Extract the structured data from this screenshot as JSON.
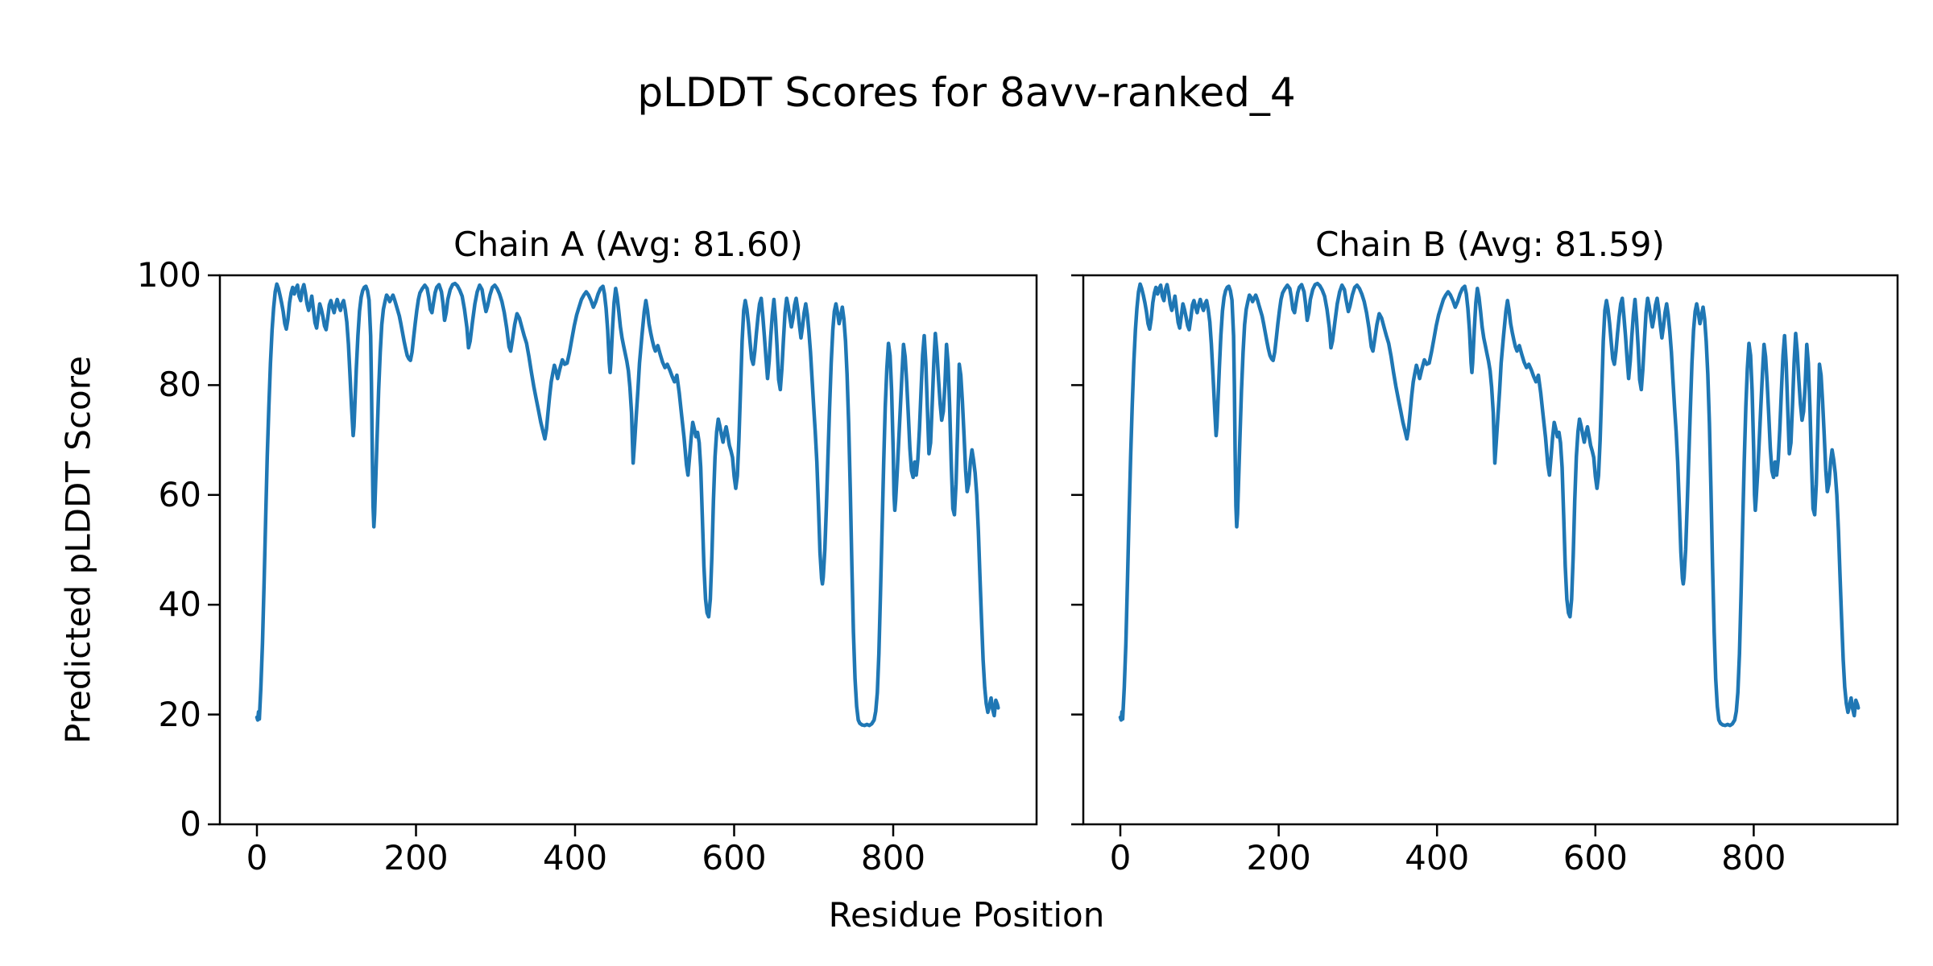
{
  "chart_data": {
    "type": "line",
    "title": "pLDDT Scores for 8avv-ranked_4",
    "xlabel": "Residue Position",
    "ylabel": "Predicted pLDDT Score",
    "ylim": [
      0,
      100
    ],
    "xlim": [
      -47,
      981
    ],
    "y_ticks": [
      0,
      20,
      40,
      60,
      80,
      100
    ],
    "x_ticks": [
      0,
      200,
      400,
      600,
      800
    ],
    "grid": false,
    "legend": "none",
    "line_color": "#1f77b4",
    "panels": [
      {
        "title": "Chain A (Avg: 81.60)",
        "chain": "A",
        "avg_plddt": "81.60"
      },
      {
        "title": "Chain B (Avg: 81.59)",
        "chain": "B",
        "avg_plddt": "81.59"
      }
    ],
    "series_note": "Chain A and Chain B traces are visually identical; both use the shared points array below (residue, pLDDT).",
    "points": [
      [
        0,
        19.5
      ],
      [
        1,
        19.0
      ],
      [
        2,
        20.5
      ],
      [
        3,
        19.2
      ],
      [
        5,
        25
      ],
      [
        7,
        33
      ],
      [
        9,
        44
      ],
      [
        11,
        56
      ],
      [
        13,
        67
      ],
      [
        15,
        76
      ],
      [
        17,
        84
      ],
      [
        19,
        90
      ],
      [
        21,
        94
      ],
      [
        23,
        97
      ],
      [
        25,
        98.4
      ],
      [
        27,
        97.6
      ],
      [
        29,
        96.4
      ],
      [
        31,
        95
      ],
      [
        33,
        93.4
      ],
      [
        35,
        91.2
      ],
      [
        37,
        90.2
      ],
      [
        39,
        92
      ],
      [
        41,
        95
      ],
      [
        43,
        96.8
      ],
      [
        45,
        97.8
      ],
      [
        47,
        96.6
      ],
      [
        49,
        97.6
      ],
      [
        51,
        98.2
      ],
      [
        53,
        96.2
      ],
      [
        55,
        95.4
      ],
      [
        57,
        97.4
      ],
      [
        59,
        98.3
      ],
      [
        61,
        96.8
      ],
      [
        63,
        94.8
      ],
      [
        65,
        93.6
      ],
      [
        67,
        94.8
      ],
      [
        69,
        96.2
      ],
      [
        71,
        93.8
      ],
      [
        73,
        91.4
      ],
      [
        75,
        90.4
      ],
      [
        77,
        92.6
      ],
      [
        79,
        94.8
      ],
      [
        81,
        93.8
      ],
      [
        83,
        92.4
      ],
      [
        85,
        90.8
      ],
      [
        87,
        90.1
      ],
      [
        89,
        92.2
      ],
      [
        91,
        94.6
      ],
      [
        93,
        95.4
      ],
      [
        95,
        94.2
      ],
      [
        97,
        93.2
      ],
      [
        99,
        94.6
      ],
      [
        101,
        95.6
      ],
      [
        103,
        94.4
      ],
      [
        105,
        93.6
      ],
      [
        107,
        94.8
      ],
      [
        109,
        95.4
      ],
      [
        111,
        93.8
      ],
      [
        113,
        91.5
      ],
      [
        115,
        87.5
      ],
      [
        117,
        82
      ],
      [
        119,
        76
      ],
      [
        121,
        70.8
      ],
      [
        122,
        72.5
      ],
      [
        123,
        76
      ],
      [
        125,
        83
      ],
      [
        127,
        89
      ],
      [
        129,
        93.5
      ],
      [
        131,
        96
      ],
      [
        133,
        97.2
      ],
      [
        135,
        97.8
      ],
      [
        137,
        98
      ],
      [
        139,
        97.2
      ],
      [
        141,
        95.5
      ],
      [
        143,
        89
      ],
      [
        144,
        80
      ],
      [
        145,
        68
      ],
      [
        146,
        58
      ],
      [
        147,
        54.2
      ],
      [
        148,
        56.5
      ],
      [
        149,
        61
      ],
      [
        151,
        70
      ],
      [
        153,
        79
      ],
      [
        155,
        86
      ],
      [
        157,
        91
      ],
      [
        159,
        93.8
      ],
      [
        161,
        95.2
      ],
      [
        163,
        96.4
      ],
      [
        165,
        96
      ],
      [
        167,
        95.2
      ],
      [
        169,
        95.8
      ],
      [
        171,
        96.4
      ],
      [
        173,
        95.6
      ],
      [
        175,
        94.6
      ],
      [
        177,
        93.6
      ],
      [
        179,
        92.6
      ],
      [
        181,
        91.2
      ],
      [
        183,
        89.6
      ],
      [
        185,
        88
      ],
      [
        187,
        86.6
      ],
      [
        189,
        85.4
      ],
      [
        191,
        84.8
      ],
      [
        193,
        84.5
      ],
      [
        195,
        86
      ],
      [
        197,
        88.6
      ],
      [
        199,
        91.2
      ],
      [
        201,
        93.6
      ],
      [
        203,
        95.6
      ],
      [
        205,
        96.8
      ],
      [
        208,
        97.6
      ],
      [
        211,
        98.2
      ],
      [
        214,
        97.6
      ],
      [
        216,
        96
      ],
      [
        218,
        93.8
      ],
      [
        220,
        93.2
      ],
      [
        222,
        95
      ],
      [
        224,
        96.8
      ],
      [
        226,
        97.8
      ],
      [
        229,
        98.3
      ],
      [
        232,
        97
      ],
      [
        234,
        94.8
      ],
      [
        236,
        91.8
      ],
      [
        238,
        93.2
      ],
      [
        240,
        95.6
      ],
      [
        243,
        97.4
      ],
      [
        246,
        98.3
      ],
      [
        249,
        98.5
      ],
      [
        252,
        98.1
      ],
      [
        255,
        97.3
      ],
      [
        258,
        96.2
      ],
      [
        261,
        93.8
      ],
      [
        264,
        90.5
      ],
      [
        266,
        86.8
      ],
      [
        268,
        88
      ],
      [
        271,
        91.5
      ],
      [
        274,
        94.8
      ],
      [
        277,
        97
      ],
      [
        280,
        98.2
      ],
      [
        283,
        97.4
      ],
      [
        285,
        95.6
      ],
      [
        288,
        93.4
      ],
      [
        290,
        94.4
      ],
      [
        293,
        96.4
      ],
      [
        296,
        97.8
      ],
      [
        299,
        98.2
      ],
      [
        302,
        97.6
      ],
      [
        305,
        96.6
      ],
      [
        308,
        95.2
      ],
      [
        311,
        93.2
      ],
      [
        314,
        90.4
      ],
      [
        317,
        87
      ],
      [
        319,
        86.2
      ],
      [
        321,
        88
      ],
      [
        324,
        91
      ],
      [
        327,
        93
      ],
      [
        330,
        92.2
      ],
      [
        333,
        90.6
      ],
      [
        336,
        89
      ],
      [
        339,
        87.6
      ],
      [
        342,
        85.2
      ],
      [
        345,
        82.4
      ],
      [
        348,
        79.8
      ],
      [
        351,
        77.6
      ],
      [
        354,
        75.4
      ],
      [
        357,
        73.2
      ],
      [
        360,
        71.4
      ],
      [
        362,
        70.2
      ],
      [
        364,
        72
      ],
      [
        366,
        75
      ],
      [
        368,
        78
      ],
      [
        370,
        80.6
      ],
      [
        372,
        82.2
      ],
      [
        374,
        83.6
      ],
      [
        376,
        82.6
      ],
      [
        378,
        81.2
      ],
      [
        381,
        83
      ],
      [
        384,
        84.6
      ],
      [
        387,
        83.8
      ],
      [
        390,
        84
      ],
      [
        393,
        86
      ],
      [
        396,
        88.4
      ],
      [
        399,
        90.8
      ],
      [
        402,
        92.8
      ],
      [
        405,
        94.2
      ],
      [
        408,
        95.6
      ],
      [
        411,
        96.4
      ],
      [
        414,
        97
      ],
      [
        417,
        96.4
      ],
      [
        420,
        95.4
      ],
      [
        423,
        94.2
      ],
      [
        426,
        95.2
      ],
      [
        429,
        96.6
      ],
      [
        432,
        97.6
      ],
      [
        435,
        98
      ],
      [
        437,
        96.6
      ],
      [
        439,
        94
      ],
      [
        441,
        90
      ],
      [
        443,
        84
      ],
      [
        444,
        82.3
      ],
      [
        445,
        84
      ],
      [
        447,
        90
      ],
      [
        449,
        95
      ],
      [
        451,
        97.6
      ],
      [
        453,
        96
      ],
      [
        455,
        93.4
      ],
      [
        457,
        90.6
      ],
      [
        459,
        88.6
      ],
      [
        461,
        87.2
      ],
      [
        463,
        85.8
      ],
      [
        465,
        84.4
      ],
      [
        467,
        82.6
      ],
      [
        469,
        79.6
      ],
      [
        471,
        75
      ],
      [
        473,
        65.8
      ],
      [
        475,
        70
      ],
      [
        477,
        74.5
      ],
      [
        479,
        79
      ],
      [
        481,
        84
      ],
      [
        484,
        89
      ],
      [
        487,
        93.4
      ],
      [
        489,
        95.4
      ],
      [
        491,
        93.6
      ],
      [
        493,
        91.2
      ],
      [
        495,
        89.6
      ],
      [
        497,
        88.2
      ],
      [
        499,
        87
      ],
      [
        501,
        86.2
      ],
      [
        504,
        87.2
      ],
      [
        507,
        85.6
      ],
      [
        510,
        84.2
      ],
      [
        513,
        83.2
      ],
      [
        516,
        83.8
      ],
      [
        519,
        82.8
      ],
      [
        522,
        81.6
      ],
      [
        525,
        80.6
      ],
      [
        528,
        81.8
      ],
      [
        531,
        78.5
      ],
      [
        534,
        74.5
      ],
      [
        537,
        70.5
      ],
      [
        540,
        65.5
      ],
      [
        542,
        63.6
      ],
      [
        544,
        67
      ],
      [
        546,
        70.5
      ],
      [
        548,
        73.2
      ],
      [
        550,
        72
      ],
      [
        552,
        70.6
      ],
      [
        554,
        71.4
      ],
      [
        556,
        69.5
      ],
      [
        558,
        65
      ],
      [
        560,
        56
      ],
      [
        562,
        47
      ],
      [
        564,
        41
      ],
      [
        566,
        38.5
      ],
      [
        568,
        37.8
      ],
      [
        570,
        41
      ],
      [
        572,
        49
      ],
      [
        574,
        59
      ],
      [
        576,
        67
      ],
      [
        578,
        71.5
      ],
      [
        580,
        73.8
      ],
      [
        582,
        72.6
      ],
      [
        584,
        71
      ],
      [
        586,
        69.6
      ],
      [
        588,
        71.2
      ],
      [
        590,
        72.4
      ],
      [
        592,
        70.8
      ],
      [
        594,
        69
      ],
      [
        596,
        68
      ],
      [
        598,
        66.8
      ],
      [
        600,
        63.4
      ],
      [
        602,
        61.2
      ],
      [
        604,
        63.5
      ],
      [
        606,
        70
      ],
      [
        608,
        79
      ],
      [
        610,
        88
      ],
      [
        612,
        93.6
      ],
      [
        614,
        95.4
      ],
      [
        616,
        93.8
      ],
      [
        618,
        91.2
      ],
      [
        620,
        87.8
      ],
      [
        622,
        84.8
      ],
      [
        624,
        83.8
      ],
      [
        626,
        86.2
      ],
      [
        628,
        89.4
      ],
      [
        630,
        92.4
      ],
      [
        632,
        94.8
      ],
      [
        634,
        95.8
      ],
      [
        636,
        92.6
      ],
      [
        638,
        89
      ],
      [
        640,
        85
      ],
      [
        642,
        81.2
      ],
      [
        644,
        84.4
      ],
      [
        646,
        88.8
      ],
      [
        648,
        92.8
      ],
      [
        650,
        95.6
      ],
      [
        652,
        92
      ],
      [
        654,
        87
      ],
      [
        656,
        81
      ],
      [
        658,
        79.2
      ],
      [
        660,
        83
      ],
      [
        662,
        88.2
      ],
      [
        664,
        93.2
      ],
      [
        666,
        95.8
      ],
      [
        668,
        94.4
      ],
      [
        670,
        92.4
      ],
      [
        672,
        90.6
      ],
      [
        674,
        92.2
      ],
      [
        676,
        94.6
      ],
      [
        678,
        95.8
      ],
      [
        680,
        93.8
      ],
      [
        682,
        91
      ],
      [
        684,
        88.6
      ],
      [
        686,
        90.6
      ],
      [
        688,
        93.2
      ],
      [
        690,
        94.8
      ],
      [
        692,
        92.8
      ],
      [
        694,
        89.8
      ],
      [
        696,
        86
      ],
      [
        698,
        81
      ],
      [
        700,
        76
      ],
      [
        702,
        71.5
      ],
      [
        704,
        66
      ],
      [
        706,
        58
      ],
      [
        708,
        49.5
      ],
      [
        710,
        44.8
      ],
      [
        711,
        43.8
      ],
      [
        712,
        45
      ],
      [
        714,
        50
      ],
      [
        716,
        58
      ],
      [
        718,
        67
      ],
      [
        720,
        76
      ],
      [
        722,
        84
      ],
      [
        724,
        90
      ],
      [
        726,
        93.4
      ],
      [
        728,
        94.8
      ],
      [
        730,
        93.2
      ],
      [
        732,
        91.2
      ],
      [
        734,
        92.6
      ],
      [
        736,
        94.2
      ],
      [
        738,
        92
      ],
      [
        740,
        88
      ],
      [
        742,
        82
      ],
      [
        744,
        73
      ],
      [
        746,
        61
      ],
      [
        748,
        47
      ],
      [
        750,
        35
      ],
      [
        752,
        26.5
      ],
      [
        754,
        21.5
      ],
      [
        756,
        19
      ],
      [
        758,
        18.4
      ],
      [
        761,
        18.1
      ],
      [
        764,
        18
      ],
      [
        767,
        18.2
      ],
      [
        770,
        18
      ],
      [
        773,
        18.3
      ],
      [
        776,
        19
      ],
      [
        778,
        20.6
      ],
      [
        780,
        24
      ],
      [
        782,
        31
      ],
      [
        784,
        42
      ],
      [
        786,
        54
      ],
      [
        788,
        66
      ],
      [
        790,
        76
      ],
      [
        792,
        83
      ],
      [
        794,
        87.6
      ],
      [
        796,
        85.4
      ],
      [
        798,
        79
      ],
      [
        800,
        68
      ],
      [
        801,
        60
      ],
      [
        802,
        57.2
      ],
      [
        803,
        59
      ],
      [
        805,
        64
      ],
      [
        807,
        70
      ],
      [
        809,
        76
      ],
      [
        811,
        82
      ],
      [
        813,
        87.4
      ],
      [
        815,
        85.2
      ],
      [
        817,
        80.4
      ],
      [
        819,
        74.5
      ],
      [
        821,
        68.5
      ],
      [
        823,
        64.4
      ],
      [
        825,
        63.2
      ],
      [
        827,
        66
      ],
      [
        829,
        63.6
      ],
      [
        831,
        66.5
      ],
      [
        833,
        72
      ],
      [
        835,
        79
      ],
      [
        837,
        85.4
      ],
      [
        839,
        89
      ],
      [
        841,
        84
      ],
      [
        843,
        75.5
      ],
      [
        845,
        67.5
      ],
      [
        847,
        69.5
      ],
      [
        849,
        76.5
      ],
      [
        851,
        84
      ],
      [
        853,
        89.4
      ],
      [
        855,
        86
      ],
      [
        857,
        81
      ],
      [
        859,
        76.6
      ],
      [
        861,
        73.6
      ],
      [
        863,
        75.2
      ],
      [
        865,
        80
      ],
      [
        867,
        87.4
      ],
      [
        869,
        84
      ],
      [
        871,
        76
      ],
      [
        873,
        65.5
      ],
      [
        875,
        57.5
      ],
      [
        877,
        56.4
      ],
      [
        879,
        62
      ],
      [
        881,
        72
      ],
      [
        883,
        83.8
      ],
      [
        885,
        81.8
      ],
      [
        887,
        77
      ],
      [
        889,
        71
      ],
      [
        891,
        64.5
      ],
      [
        893,
        60.6
      ],
      [
        895,
        62
      ],
      [
        897,
        66
      ],
      [
        899,
        68.2
      ],
      [
        901,
        66.4
      ],
      [
        903,
        64
      ],
      [
        905,
        60
      ],
      [
        907,
        53.5
      ],
      [
        909,
        45.5
      ],
      [
        911,
        37.5
      ],
      [
        913,
        30
      ],
      [
        915,
        25
      ],
      [
        917,
        22
      ],
      [
        919,
        20.4
      ],
      [
        921,
        21.6
      ],
      [
        923,
        23
      ],
      [
        925,
        21
      ],
      [
        927,
        19.8
      ],
      [
        929,
        22.6
      ],
      [
        931,
        21.8
      ],
      [
        932,
        21.2
      ]
    ]
  }
}
